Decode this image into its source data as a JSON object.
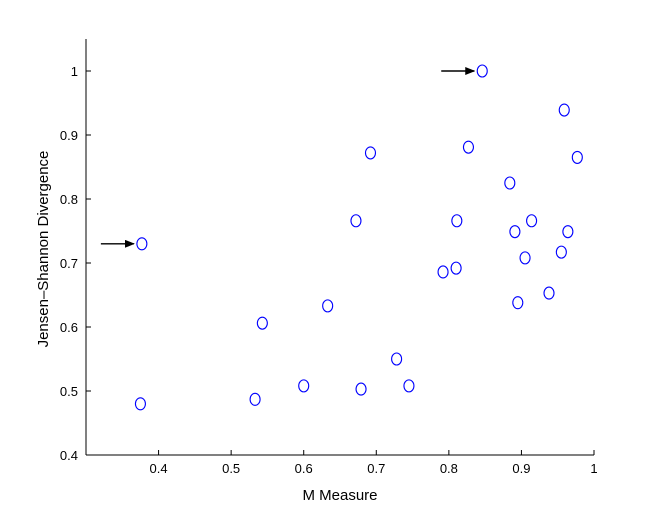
{
  "chart_data": {
    "type": "scatter",
    "xlabel": "M Measure",
    "ylabel": "Jensen–Shannon Divergence",
    "xlim": [
      0.3,
      1.0
    ],
    "ylim": [
      0.4,
      1.05
    ],
    "xticks": [
      0.4,
      0.5,
      0.6,
      0.7,
      0.8,
      0.9,
      1
    ],
    "xtick_labels": [
      "0.4",
      "0.5",
      "0.6",
      "0.7",
      "0.8",
      "0.9",
      "1"
    ],
    "yticks": [
      0.4,
      0.5,
      0.6,
      0.7,
      0.8,
      0.9,
      1
    ],
    "ytick_labels": [
      "0.4",
      "0.5",
      "0.6",
      "0.7",
      "0.8",
      "0.9",
      "1"
    ],
    "grid": false,
    "marker": "open-circle",
    "marker_color": "#0000ff",
    "points": [
      {
        "x": 0.375,
        "y": 0.48
      },
      {
        "x": 0.377,
        "y": 0.73
      },
      {
        "x": 0.533,
        "y": 0.487
      },
      {
        "x": 0.543,
        "y": 0.606
      },
      {
        "x": 0.6,
        "y": 0.508
      },
      {
        "x": 0.633,
        "y": 0.633
      },
      {
        "x": 0.672,
        "y": 0.766
      },
      {
        "x": 0.679,
        "y": 0.503
      },
      {
        "x": 0.692,
        "y": 0.872
      },
      {
        "x": 0.728,
        "y": 0.55
      },
      {
        "x": 0.745,
        "y": 0.508
      },
      {
        "x": 0.792,
        "y": 0.686
      },
      {
        "x": 0.81,
        "y": 0.692
      },
      {
        "x": 0.811,
        "y": 0.766
      },
      {
        "x": 0.827,
        "y": 0.881
      },
      {
        "x": 0.846,
        "y": 1.0
      },
      {
        "x": 0.884,
        "y": 0.825
      },
      {
        "x": 0.891,
        "y": 0.749
      },
      {
        "x": 0.895,
        "y": 0.638
      },
      {
        "x": 0.905,
        "y": 0.708
      },
      {
        "x": 0.914,
        "y": 0.766
      },
      {
        "x": 0.938,
        "y": 0.653
      },
      {
        "x": 0.955,
        "y": 0.717
      },
      {
        "x": 0.959,
        "y": 0.939
      },
      {
        "x": 0.964,
        "y": 0.749
      },
      {
        "x": 0.977,
        "y": 0.865
      }
    ],
    "annotations": [
      {
        "type": "arrow",
        "points_to": {
          "x": 0.377,
          "y": 0.73
        },
        "from": "left"
      },
      {
        "type": "arrow",
        "points_to": {
          "x": 0.846,
          "y": 1.0
        },
        "from": "left"
      }
    ]
  }
}
